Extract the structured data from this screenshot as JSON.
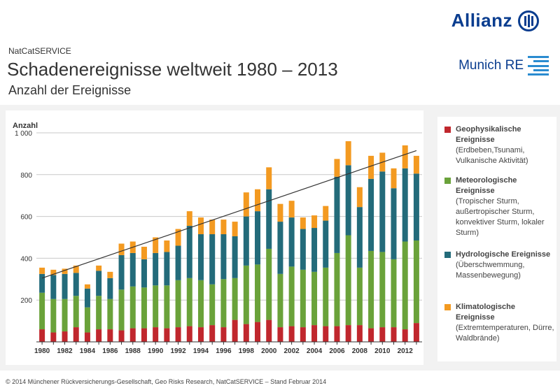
{
  "header": {
    "kicker": "NatCatSERVICE",
    "title": "Schadenereignisse weltweit 1980 – 2013",
    "subtitle": "Anzahl der Ereignisse",
    "brand_primary": "Allianz",
    "brand_secondary": "Munich RE"
  },
  "legend": [
    {
      "name": "Geophysikalische Ereignisse",
      "detail": "(Erdbeben,Tsunami, Vulkanische Aktivität)",
      "color": "#c0272d"
    },
    {
      "name": "Meteorologische Ereignisse",
      "detail": "(Tropischer Sturm, außertropischer Sturm, konvektiver Sturm, lokaler Sturm)",
      "color": "#6aa23a"
    },
    {
      "name": "Hydrologische Ereignisse",
      "detail": "(Überschwemmung, Massenbewegung)",
      "color": "#236b7a"
    },
    {
      "name": "Klimatologische Ereignisse",
      "detail": "(Extremtemperaturen, Dürre, Waldbrände)",
      "color": "#f39a21"
    }
  ],
  "footer": "© 2014 Münchener Rückversicherungs-Gesellschaft, Geo Risks Research, NatCatSERVICE – Stand Februar 2014",
  "chart_data": {
    "type": "bar",
    "stacked": true,
    "ylabel": "Anzahl",
    "ylim": [
      0,
      1000
    ],
    "yticks": [
      200,
      400,
      600,
      800,
      1000
    ],
    "ytick_labels": [
      "200",
      "400",
      "600",
      "800",
      "1 000"
    ],
    "grid": true,
    "xtick_labels": [
      "1980",
      "1982",
      "1984",
      "1986",
      "1988",
      "1990",
      "1992",
      "1994",
      "1996",
      "1998",
      "2000",
      "2002",
      "2004",
      "2006",
      "2008",
      "2010",
      "2012"
    ],
    "categories": [
      1980,
      1981,
      1982,
      1983,
      1984,
      1985,
      1986,
      1987,
      1988,
      1989,
      1990,
      1991,
      1992,
      1993,
      1994,
      1995,
      1996,
      1997,
      1998,
      1999,
      2000,
      2001,
      2002,
      2003,
      2004,
      2005,
      2006,
      2007,
      2008,
      2009,
      2010,
      2011,
      2012,
      2013
    ],
    "series": [
      {
        "name": "Geophysikalische Ereignisse",
        "color": "#c0272d",
        "values": [
          60,
          45,
          50,
          70,
          45,
          60,
          60,
          55,
          65,
          65,
          70,
          65,
          70,
          75,
          70,
          80,
          70,
          105,
          85,
          95,
          105,
          70,
          75,
          70,
          80,
          75,
          75,
          80,
          80,
          65,
          70,
          70,
          60,
          90
        ]
      },
      {
        "name": "Meteorologische Ereignisse",
        "color": "#6aa23a",
        "values": [
          175,
          160,
          155,
          150,
          120,
          160,
          145,
          195,
          200,
          195,
          200,
          205,
          225,
          230,
          225,
          195,
          230,
          200,
          280,
          275,
          340,
          255,
          285,
          275,
          255,
          280,
          350,
          430,
          275,
          370,
          360,
          325,
          420,
          395
        ]
      },
      {
        "name": "Hydrologische Ereignisse",
        "color": "#236b7a",
        "values": [
          90,
          115,
          120,
          110,
          90,
          120,
          100,
          165,
          160,
          135,
          155,
          160,
          165,
          250,
          220,
          240,
          215,
          200,
          235,
          255,
          285,
          250,
          235,
          195,
          210,
          225,
          365,
          335,
          290,
          345,
          385,
          340,
          350,
          320
        ]
      },
      {
        "name": "Klimatologische Ereignisse",
        "color": "#f39a21",
        "values": [
          30,
          25,
          25,
          35,
          20,
          25,
          30,
          55,
          55,
          60,
          75,
          55,
          80,
          70,
          80,
          70,
          70,
          70,
          115,
          105,
          105,
          85,
          80,
          55,
          60,
          70,
          85,
          115,
          95,
          110,
          90,
          95,
          110,
          85
        ]
      }
    ],
    "trend": {
      "x": [
        1980,
        2013
      ],
      "y": [
        305,
        915
      ]
    }
  }
}
